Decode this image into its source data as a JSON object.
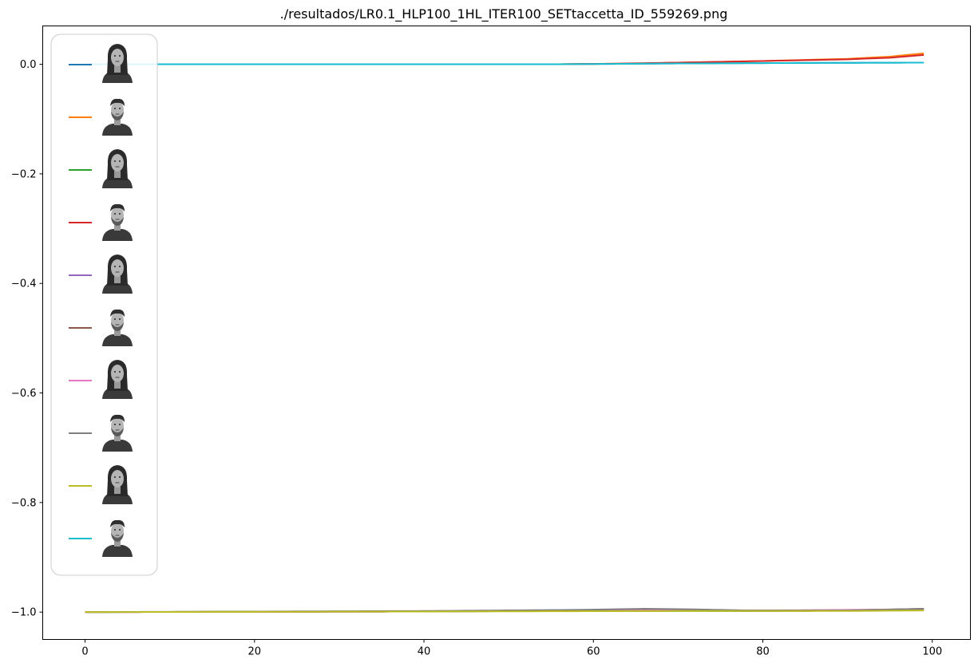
{
  "chart_data": {
    "type": "line",
    "title": "./resultados/LR0.1_HLP100_1HL_ITER100_SETtaccetta_ID_559269.png",
    "xlabel": "",
    "ylabel": "",
    "xlim": [
      -5,
      104.5
    ],
    "ylim": [
      -1.05,
      0.07
    ],
    "xticks": [
      0,
      20,
      40,
      60,
      80,
      100
    ],
    "xtick_labels": [
      "0",
      "20",
      "40",
      "60",
      "80",
      "100"
    ],
    "yticks": [
      0.0,
      -0.2,
      -0.4,
      -0.6,
      -0.8,
      -1.0
    ],
    "ytick_labels": [
      "0.0",
      "−0.2",
      "−0.4",
      "−0.6",
      "−0.8",
      "−1.0"
    ],
    "grid": false,
    "legend_placement": "upper-left",
    "series": [
      {
        "color": "#1f77b4",
        "icon": "face-female-neutral-icon",
        "points": [
          [
            0,
            0.0
          ],
          [
            55,
            0.0
          ],
          [
            70,
            0.0015
          ],
          [
            85,
            0.0025
          ],
          [
            99,
            0.003
          ]
        ]
      },
      {
        "color": "#ff7f0e",
        "icon": "face-male-neutral-icon",
        "points": [
          [
            0,
            0.0
          ],
          [
            55,
            0.0
          ],
          [
            62,
            0.001
          ],
          [
            70,
            0.003
          ],
          [
            80,
            0.006
          ],
          [
            90,
            0.01
          ],
          [
            95,
            0.014
          ],
          [
            99,
            0.02
          ]
        ]
      },
      {
        "color": "#2ca02c",
        "icon": "face-female-smile-icon",
        "points": [
          [
            0,
            -1.0
          ],
          [
            30,
            -0.999
          ],
          [
            60,
            -0.998
          ],
          [
            80,
            -0.998
          ],
          [
            99,
            -0.996
          ]
        ]
      },
      {
        "color": "#d62728",
        "icon": "face-male-smile-icon",
        "points": [
          [
            0,
            0.0
          ],
          [
            55,
            0.0
          ],
          [
            62,
            0.001
          ],
          [
            70,
            0.003
          ],
          [
            80,
            0.006
          ],
          [
            90,
            0.009
          ],
          [
            95,
            0.012
          ],
          [
            99,
            0.017
          ]
        ]
      },
      {
        "color": "#9467bd",
        "icon": "face-female-angry-icon",
        "points": [
          [
            0,
            -1.0
          ],
          [
            40,
            -0.999
          ],
          [
            60,
            -0.997
          ],
          [
            80,
            -0.998
          ],
          [
            99,
            -0.995
          ]
        ]
      },
      {
        "color": "#8c564b",
        "icon": "face-male-shout-icon",
        "points": [
          [
            0,
            -1.0
          ],
          [
            40,
            -0.999
          ],
          [
            60,
            -0.997
          ],
          [
            75,
            -0.997
          ],
          [
            85,
            -0.998
          ],
          [
            99,
            -0.994
          ]
        ]
      },
      {
        "color": "#e377c2",
        "icon": "face-female-surprise-icon",
        "points": [
          [
            0,
            -1.0
          ],
          [
            40,
            -0.999
          ],
          [
            60,
            -0.996
          ],
          [
            70,
            -0.996
          ],
          [
            80,
            -0.997
          ],
          [
            99,
            -0.995
          ]
        ]
      },
      {
        "color": "#7f7f7f",
        "icon": "face-male-surprise-icon",
        "points": [
          [
            0,
            -1.0
          ],
          [
            40,
            -0.998
          ],
          [
            58,
            -0.996
          ],
          [
            66,
            -0.994
          ],
          [
            72,
            -0.995
          ],
          [
            78,
            -0.997
          ],
          [
            90,
            -0.997
          ],
          [
            99,
            -0.994
          ]
        ]
      },
      {
        "color": "#bcbd22",
        "icon": "face-female-neutral-2-icon",
        "points": [
          [
            0,
            -1.0
          ],
          [
            40,
            -0.999
          ],
          [
            70,
            -0.998
          ],
          [
            90,
            -0.998
          ],
          [
            99,
            -0.997
          ]
        ]
      },
      {
        "color": "#17becf",
        "icon": "face-male-neutral-2-icon",
        "points": [
          [
            0,
            0.0
          ],
          [
            55,
            0.0
          ],
          [
            70,
            0.0015
          ],
          [
            85,
            0.0025
          ],
          [
            99,
            0.003
          ]
        ]
      }
    ]
  }
}
